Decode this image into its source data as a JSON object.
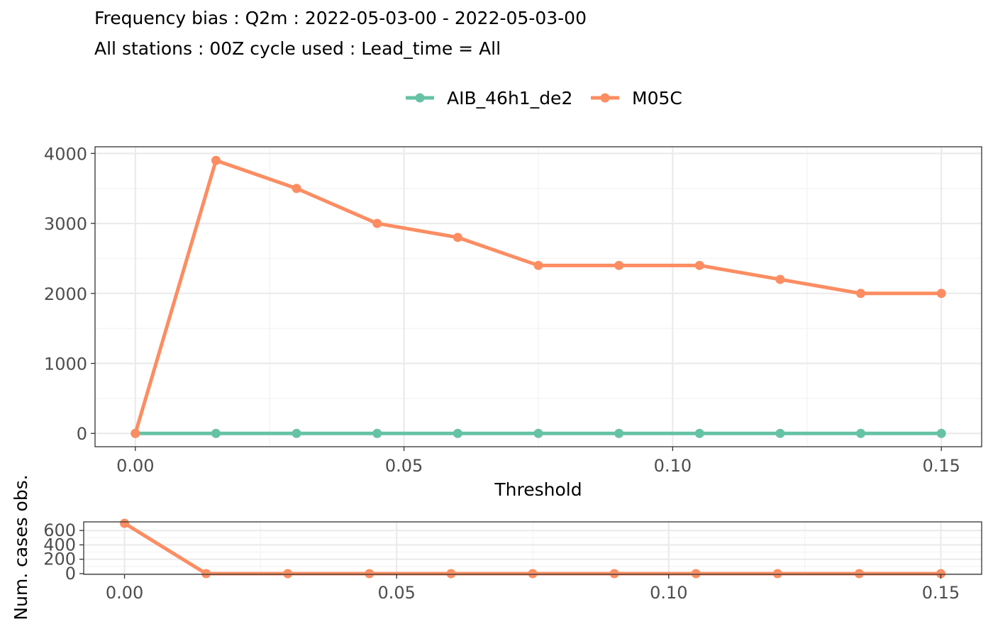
{
  "title": "Frequency bias : Q2m : 2022-05-03-00 - 2022-05-03-00",
  "subtitle": "All stations : 00Z cycle used : Lead_time = All",
  "colors": {
    "AIB_46h1_de2": "#66c2a5",
    "M05C": "#fc8d62",
    "grid_major": "#ebebeb",
    "grid_minor": "#f3f3f3",
    "panel_border": "#333333"
  },
  "chart_data": [
    {
      "type": "line",
      "title": "Frequency bias : Q2m : 2022-05-03-00 - 2022-05-03-00",
      "subtitle": "All stations : 00Z cycle used : Lead_time = All",
      "xlabel": "Threshold",
      "ylabel": "",
      "x": [
        0.0,
        0.015,
        0.03,
        0.045,
        0.06,
        0.075,
        0.09,
        0.105,
        0.12,
        0.135,
        0.15
      ],
      "xlim": [
        -0.0075,
        0.1575
      ],
      "ylim": [
        -190,
        4095
      ],
      "x_ticks": [
        "0.00",
        "0.05",
        "0.10",
        "0.15"
      ],
      "x_tick_values": [
        0.0,
        0.05,
        0.1,
        0.15
      ],
      "y_ticks": [
        "0",
        "1000",
        "2000",
        "3000",
        "4000"
      ],
      "y_tick_values": [
        0,
        1000,
        2000,
        3000,
        4000
      ],
      "grid": true,
      "legend_position": "top",
      "series": [
        {
          "name": "AIB_46h1_de2",
          "values": [
            0,
            0,
            0,
            0,
            0,
            0,
            0,
            0,
            0,
            0,
            0
          ]
        },
        {
          "name": "M05C",
          "values": [
            0,
            3900,
            3500,
            3000,
            2800,
            2400,
            2400,
            2400,
            2200,
            2000,
            2000
          ]
        }
      ]
    },
    {
      "type": "line",
      "xlabel": "",
      "ylabel": "Num. cases obs.",
      "x": [
        0.0,
        0.015,
        0.03,
        0.045,
        0.06,
        0.075,
        0.09,
        0.105,
        0.12,
        0.135,
        0.15
      ],
      "xlim": [
        -0.0075,
        0.1575
      ],
      "ylim": [
        -10,
        720
      ],
      "x_ticks": [
        "0.00",
        "0.05",
        "0.10",
        "0.15"
      ],
      "x_tick_values": [
        0.0,
        0.05,
        0.1,
        0.15
      ],
      "y_ticks": [
        "0",
        "200",
        "400",
        "600"
      ],
      "y_tick_values": [
        0,
        200,
        400,
        600
      ],
      "grid": true,
      "series": [
        {
          "name": "M05C",
          "values": [
            700,
            0,
            0,
            0,
            0,
            0,
            0,
            0,
            0,
            0,
            0
          ]
        }
      ]
    }
  ]
}
